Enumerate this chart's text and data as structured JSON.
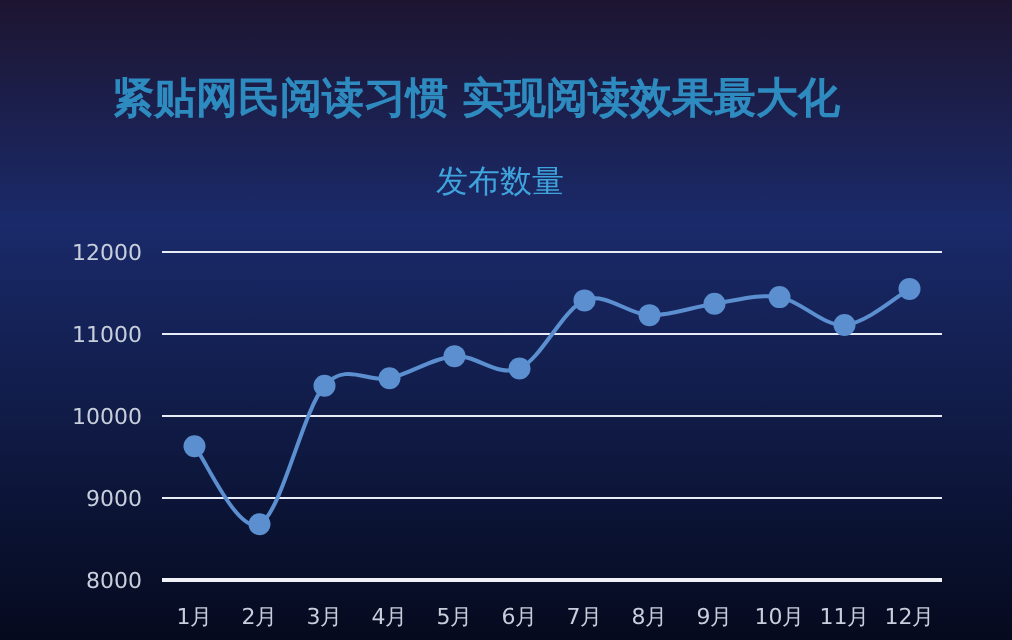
{
  "chart_data": {
    "type": "line",
    "title": "紧贴网民阅读习惯 实现阅读效果最大化",
    "subtitle": "发布数量",
    "categories": [
      "1月",
      "2月",
      "3月",
      "4月",
      "5月",
      "6月",
      "7月",
      "8月",
      "9月",
      "10月",
      "11月",
      "12月"
    ],
    "series": [
      {
        "color": "#5b8fd0",
        "values": [
          9630,
          8680,
          10370,
          10460,
          10730,
          10580,
          11410,
          11230,
          11370,
          11450,
          11110,
          11550
        ]
      }
    ],
    "ylim": [
      8000,
      12000
    ],
    "yticks": [
      8000,
      9000,
      10000,
      11000,
      12000
    ],
    "grid": "y",
    "marker": "circle",
    "line_style": "solid"
  }
}
